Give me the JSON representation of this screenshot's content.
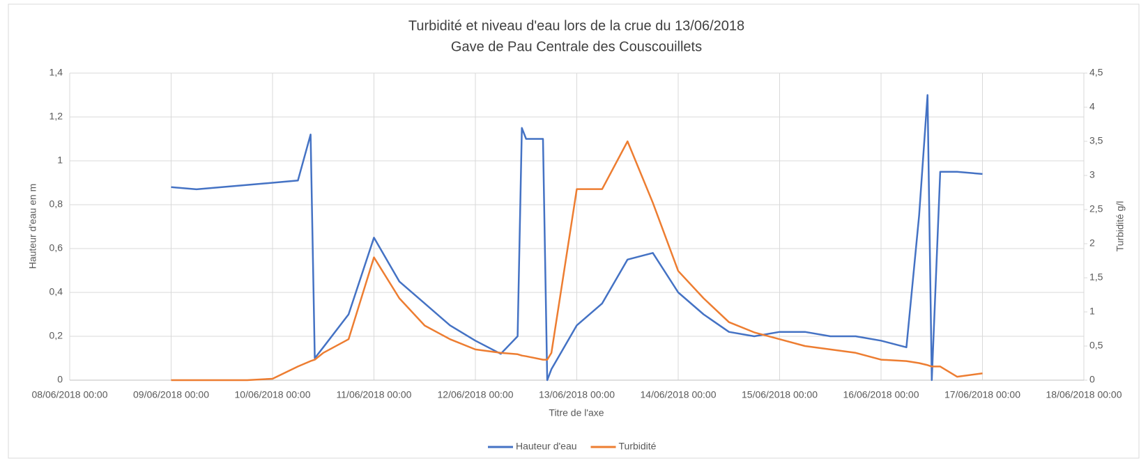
{
  "chart_data": {
    "type": "line",
    "title": "Turbidité et niveau d'eau lors de la crue du 13/06/2018",
    "subtitle": "Gave de Pau Centrale des Couscouillets",
    "x_label": "Titre de l'axe",
    "y_label": "Hauteur d'eau en m",
    "y2_label": "Turbidité g/l",
    "x": [
      "09/06/2018 00:00",
      "09/06/2018 06:00",
      "09/06/2018 12:00",
      "09/06/2018 18:00",
      "10/06/2018 00:00",
      "10/06/2018 06:00",
      "10/06/2018 09:00",
      "10/06/2018 10:00",
      "10/06/2018 12:00",
      "10/06/2018 18:00",
      "11/06/2018 00:00",
      "11/06/2018 06:00",
      "11/06/2018 12:00",
      "11/06/2018 18:00",
      "12/06/2018 00:00",
      "12/06/2018 06:00",
      "12/06/2018 10:00",
      "12/06/2018 11:00",
      "12/06/2018 12:00",
      "12/06/2018 16:00",
      "12/06/2018 17:00",
      "12/06/2018 18:00",
      "13/06/2018 00:00",
      "13/06/2018 06:00",
      "13/06/2018 12:00",
      "13/06/2018 18:00",
      "14/06/2018 00:00",
      "14/06/2018 06:00",
      "14/06/2018 12:00",
      "14/06/2018 18:00",
      "15/06/2018 00:00",
      "15/06/2018 06:00",
      "15/06/2018 12:00",
      "15/06/2018 18:00",
      "16/06/2018 00:00",
      "16/06/2018 06:00",
      "16/06/2018 09:00",
      "16/06/2018 11:00",
      "16/06/2018 12:00",
      "16/06/2018 14:00",
      "16/06/2018 18:00",
      "17/06/2018 00:00"
    ],
    "series": [
      {
        "name": "Hauteur d'eau",
        "color": "#4472c4",
        "values": [
          0.88,
          0.87,
          0.88,
          0.89,
          0.9,
          0.91,
          1.12,
          0.1,
          0.15,
          0.3,
          0.65,
          0.45,
          0.35,
          0.25,
          0.18,
          0.12,
          0.2,
          1.15,
          1.1,
          1.1,
          0.0,
          0.05,
          0.25,
          0.35,
          0.55,
          0.58,
          0.4,
          0.3,
          0.22,
          0.2,
          0.22,
          0.22,
          0.2,
          0.2,
          0.18,
          0.15,
          0.75,
          1.3,
          0.0,
          0.95,
          0.95,
          0.94
        ]
      },
      {
        "name": "Turbidité",
        "color": "#ed7d31",
        "axis": "y2",
        "values": [
          0,
          0,
          0,
          0,
          0.02,
          0.2,
          0.28,
          0.3,
          0.4,
          0.6,
          1.8,
          1.2,
          0.8,
          0.6,
          0.45,
          0.4,
          0.38,
          0.36,
          0.35,
          0.3,
          0.3,
          0.4,
          2.8,
          2.8,
          3.5,
          2.6,
          1.6,
          1.2,
          0.85,
          0.7,
          0.6,
          0.5,
          0.45,
          0.4,
          0.3,
          0.28,
          0.25,
          0.22,
          0.2,
          0.2,
          0.05,
          0.1
        ]
      }
    ],
    "xlim": [
      "08/06/2018 00:00",
      "18/06/2018 00:00"
    ],
    "xticks": [
      "08/06/2018 00:00",
      "09/06/2018 00:00",
      "10/06/2018 00:00",
      "11/06/2018 00:00",
      "12/06/2018 00:00",
      "13/06/2018 00:00",
      "14/06/2018 00:00",
      "15/06/2018 00:00",
      "16/06/2018 00:00",
      "17/06/2018 00:00",
      "18/06/2018 00:00"
    ],
    "ylim": [
      0,
      1.4
    ],
    "yticks": [
      0,
      {
        "value": 0.2,
        "label": "0,2"
      },
      {
        "value": 0.4,
        "label": "0,4"
      },
      {
        "value": 0.6,
        "label": "0,6"
      },
      {
        "value": 0.8,
        "label": "0,8"
      },
      1,
      {
        "value": 1.2,
        "label": "1,2"
      },
      {
        "value": 1.4,
        "label": "1,4"
      }
    ],
    "y2lim": [
      0,
      4.5
    ],
    "y2ticks": [
      0,
      {
        "value": 0.5,
        "label": "0,5"
      },
      1,
      {
        "value": 1.5,
        "label": "1,5"
      },
      2,
      {
        "value": 2.5,
        "label": "2,5"
      },
      3,
      {
        "value": 3.5,
        "label": "3,5"
      },
      4,
      {
        "value": 4.5,
        "label": "4,5"
      }
    ],
    "grid": true,
    "legend": "bottom"
  }
}
